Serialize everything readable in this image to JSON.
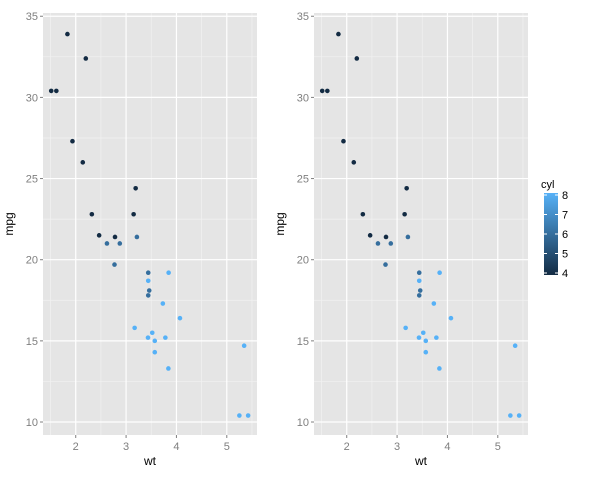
{
  "chart_data": [
    {
      "type": "scatter",
      "title": "",
      "xlabel": "wt",
      "ylabel": "mpg",
      "xlim": [
        1.35,
        5.6
      ],
      "ylim": [
        9.2,
        35.2
      ],
      "xticks": [
        2,
        3,
        4,
        5
      ],
      "yticks": [
        10,
        15,
        20,
        25,
        30,
        35
      ],
      "grid": true,
      "color_by": "cyl",
      "legend": null,
      "points": [
        {
          "wt": 2.62,
          "mpg": 21.0,
          "cyl": 6
        },
        {
          "wt": 2.875,
          "mpg": 21.0,
          "cyl": 6
        },
        {
          "wt": 2.32,
          "mpg": 22.8,
          "cyl": 4
        },
        {
          "wt": 3.215,
          "mpg": 21.4,
          "cyl": 6
        },
        {
          "wt": 3.44,
          "mpg": 18.7,
          "cyl": 8
        },
        {
          "wt": 3.46,
          "mpg": 18.1,
          "cyl": 6
        },
        {
          "wt": 3.57,
          "mpg": 14.3,
          "cyl": 8
        },
        {
          "wt": 3.19,
          "mpg": 24.4,
          "cyl": 4
        },
        {
          "wt": 3.15,
          "mpg": 22.8,
          "cyl": 4
        },
        {
          "wt": 3.44,
          "mpg": 19.2,
          "cyl": 6
        },
        {
          "wt": 3.44,
          "mpg": 17.8,
          "cyl": 6
        },
        {
          "wt": 4.07,
          "mpg": 16.4,
          "cyl": 8
        },
        {
          "wt": 3.73,
          "mpg": 17.3,
          "cyl": 8
        },
        {
          "wt": 3.78,
          "mpg": 15.2,
          "cyl": 8
        },
        {
          "wt": 5.25,
          "mpg": 10.4,
          "cyl": 8
        },
        {
          "wt": 5.424,
          "mpg": 10.4,
          "cyl": 8
        },
        {
          "wt": 5.345,
          "mpg": 14.7,
          "cyl": 8
        },
        {
          "wt": 2.2,
          "mpg": 32.4,
          "cyl": 4
        },
        {
          "wt": 1.615,
          "mpg": 30.4,
          "cyl": 4
        },
        {
          "wt": 1.835,
          "mpg": 33.9,
          "cyl": 4
        },
        {
          "wt": 2.465,
          "mpg": 21.5,
          "cyl": 4
        },
        {
          "wt": 3.52,
          "mpg": 15.5,
          "cyl": 8
        },
        {
          "wt": 3.435,
          "mpg": 15.2,
          "cyl": 8
        },
        {
          "wt": 3.84,
          "mpg": 13.3,
          "cyl": 8
        },
        {
          "wt": 3.845,
          "mpg": 19.2,
          "cyl": 8
        },
        {
          "wt": 1.935,
          "mpg": 27.3,
          "cyl": 4
        },
        {
          "wt": 2.14,
          "mpg": 26.0,
          "cyl": 4
        },
        {
          "wt": 1.513,
          "mpg": 30.4,
          "cyl": 4
        },
        {
          "wt": 3.17,
          "mpg": 15.8,
          "cyl": 8
        },
        {
          "wt": 2.77,
          "mpg": 19.7,
          "cyl": 6
        },
        {
          "wt": 3.57,
          "mpg": 15.0,
          "cyl": 8
        },
        {
          "wt": 2.78,
          "mpg": 21.4,
          "cyl": 4
        }
      ]
    },
    {
      "type": "scatter",
      "title": "",
      "xlabel": "wt",
      "ylabel": "mpg",
      "xlim": [
        1.35,
        5.6
      ],
      "ylim": [
        9.2,
        35.2
      ],
      "xticks": [
        2,
        3,
        4,
        5
      ],
      "yticks": [
        10,
        15,
        20,
        25,
        30,
        35
      ],
      "grid": true,
      "color_by": "cyl",
      "legend": {
        "title": "cyl",
        "type": "colorbar",
        "ticks": [
          4,
          5,
          6,
          7,
          8
        ],
        "low_color": "#132B43",
        "high_color": "#56B1F7",
        "position": "right"
      },
      "points": "same as panel 1"
    }
  ],
  "labels": {
    "x_title": "wt",
    "y_title": "mpg",
    "legend_title": "cyl",
    "x_ticks": [
      "2",
      "3",
      "4",
      "5"
    ],
    "y_ticks": [
      "10",
      "15",
      "20",
      "25",
      "30",
      "35"
    ],
    "legend_ticks": [
      "4",
      "5",
      "6",
      "7",
      "8"
    ]
  },
  "colors": {
    "panel_bg": "#E5E5E5",
    "grid_major": "#FFFFFF",
    "grid_minor": "#F2F2F2",
    "low": "#132B43",
    "high": "#56B1F7"
  }
}
